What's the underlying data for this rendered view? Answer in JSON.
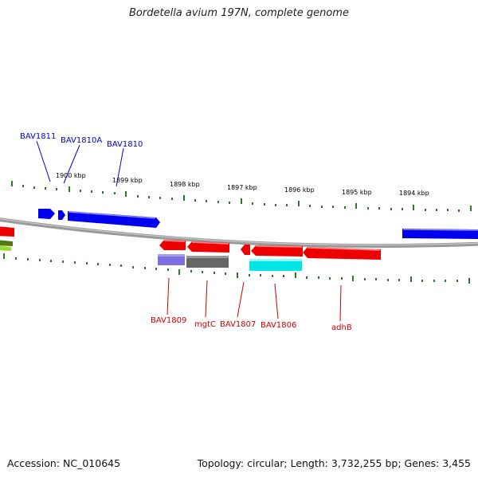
{
  "title": "Bordetella avium 197N, complete genome",
  "accession_text": "Accession: NC_010645",
  "topology_text": "Topology: circular; Length: 3,732,255 bp; Genes: 3,455",
  "ticks": [
    "1900 kbp",
    "1899 kbp",
    "1898 kbp",
    "1897 kbp",
    "1896 kbp",
    "1895 kbp",
    "1894 kbp"
  ],
  "genes_top": [
    "BAV1811",
    "BAV1810A",
    "BAV1810"
  ],
  "genes_bottom": [
    "BAV1809",
    "mgtC",
    "BAV1807",
    "BAV1806",
    "adhB"
  ],
  "colors": {
    "forward_strand": "#0000ee",
    "reverse_strand": "#ee0000",
    "tick": "#2a7a2a",
    "backbone": "#808080",
    "cyan_feature": "#00e5e5",
    "purple_feature": "#7a6ee0",
    "gray_feature": "#666666",
    "green_feature": "#88cc22"
  }
}
